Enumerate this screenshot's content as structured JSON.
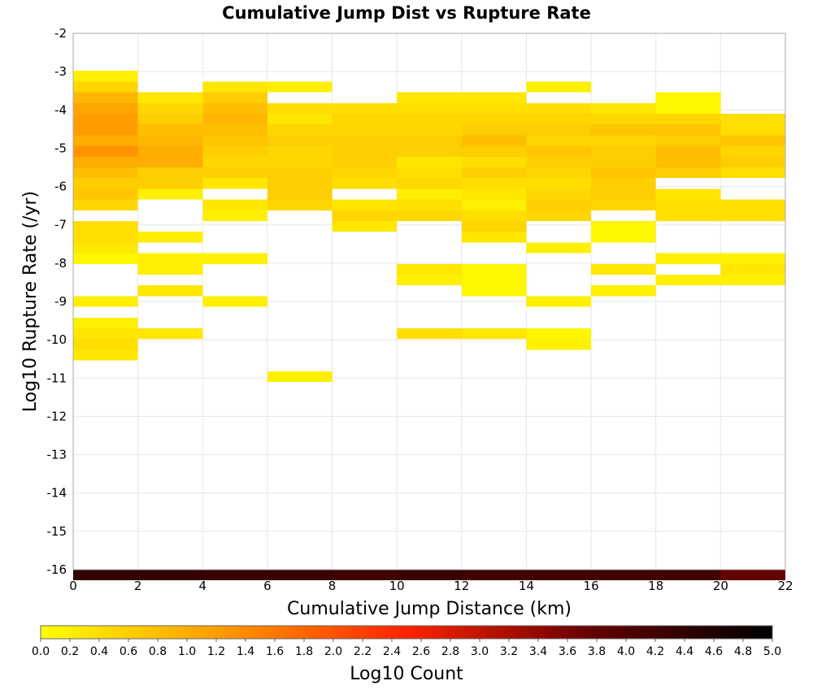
{
  "chart_data": {
    "type": "heatmap",
    "title": "Cumulative Jump Dist vs Rupture Rate",
    "xlabel": "Cumulative Jump Distance (km)",
    "ylabel": "Log10 Rupture Rate (/yr)",
    "xlim": [
      0,
      22
    ],
    "ylim": [
      -16,
      -2
    ],
    "x_ticks": [
      "0",
      "2",
      "4",
      "6",
      "8",
      "10",
      "12",
      "14",
      "16",
      "18",
      "20",
      "22"
    ],
    "y_ticks": [
      "-2",
      "-3",
      "-4",
      "-5",
      "-6",
      "-7",
      "-8",
      "-9",
      "-10",
      "-11",
      "-12",
      "-13",
      "-14",
      "-15",
      "-16"
    ],
    "x_bin_width": 2,
    "y_bin_height": 0.28,
    "grid": true,
    "colorbar": {
      "label": "Log10 Count",
      "range": [
        0,
        5
      ],
      "ticks": [
        "0.0",
        "0.2",
        "0.4",
        "0.6",
        "0.8",
        "1.0",
        "1.2",
        "1.4",
        "1.6",
        "1.8",
        "2.0",
        "2.2",
        "2.4",
        "2.6",
        "2.8",
        "3.0",
        "3.2",
        "3.4",
        "3.6",
        "3.8",
        "4.0",
        "4.2",
        "4.4",
        "4.6",
        "4.8",
        "5.0"
      ],
      "colors": [
        "#ffff00",
        "#ff9900",
        "#ff2200",
        "#660000",
        "#000000"
      ]
    },
    "cells": [
      [
        0,
        -2.98,
        0.2
      ],
      [
        0,
        -3.26,
        0.5
      ],
      [
        0,
        -3.54,
        0.9
      ],
      [
        0,
        -3.82,
        1.1
      ],
      [
        0,
        -4.1,
        1.2
      ],
      [
        0,
        -4.38,
        1.2
      ],
      [
        0,
        -4.66,
        1.0
      ],
      [
        0,
        -4.94,
        1.3
      ],
      [
        0,
        -5.22,
        1.0
      ],
      [
        0,
        -5.5,
        0.8
      ],
      [
        0,
        -5.78,
        0.6
      ],
      [
        0,
        -6.06,
        0.7
      ],
      [
        0,
        -6.34,
        0.5
      ],
      [
        0,
        -6.9,
        0.4
      ],
      [
        0,
        -7.18,
        0.4
      ],
      [
        0,
        -7.46,
        0.3
      ],
      [
        0,
        -7.74,
        0.1
      ],
      [
        0,
        -8.86,
        0.2
      ],
      [
        0,
        -9.42,
        0.2
      ],
      [
        0,
        -9.7,
        0.3
      ],
      [
        0,
        -9.98,
        0.4
      ],
      [
        0,
        -10.26,
        0.3
      ],
      [
        2,
        -3.54,
        0.3
      ],
      [
        2,
        -3.82,
        0.5
      ],
      [
        2,
        -4.1,
        0.6
      ],
      [
        2,
        -4.38,
        0.8
      ],
      [
        2,
        -4.66,
        0.9
      ],
      [
        2,
        -4.94,
        1.0
      ],
      [
        2,
        -5.22,
        1.0
      ],
      [
        2,
        -5.5,
        0.6
      ],
      [
        2,
        -5.78,
        0.6
      ],
      [
        2,
        -6.06,
        0.2
      ],
      [
        2,
        -7.18,
        0.2
      ],
      [
        2,
        -7.74,
        0.2
      ],
      [
        2,
        -8.02,
        0.2
      ],
      [
        2,
        -8.58,
        0.3
      ],
      [
        2,
        -9.7,
        0.3
      ],
      [
        4,
        -3.26,
        0.3
      ],
      [
        4,
        -3.54,
        0.6
      ],
      [
        4,
        -3.82,
        0.8
      ],
      [
        4,
        -4.1,
        0.9
      ],
      [
        4,
        -4.38,
        0.8
      ],
      [
        4,
        -4.66,
        0.7
      ],
      [
        4,
        -4.94,
        0.6
      ],
      [
        4,
        -5.22,
        0.5
      ],
      [
        4,
        -5.5,
        0.6
      ],
      [
        4,
        -5.78,
        0.3
      ],
      [
        4,
        -6.34,
        0.3
      ],
      [
        4,
        -6.62,
        0.2
      ],
      [
        4,
        -7.74,
        0.2
      ],
      [
        4,
        -8.86,
        0.2
      ],
      [
        6,
        -3.26,
        0.2
      ],
      [
        6,
        -3.82,
        0.4
      ],
      [
        6,
        -4.1,
        0.3
      ],
      [
        6,
        -4.38,
        0.5
      ],
      [
        6,
        -4.66,
        0.6
      ],
      [
        6,
        -4.94,
        0.5
      ],
      [
        6,
        -5.22,
        0.5
      ],
      [
        6,
        -5.5,
        0.6
      ],
      [
        6,
        -5.78,
        0.6
      ],
      [
        6,
        -6.06,
        0.6
      ],
      [
        6,
        -6.34,
        0.5
      ],
      [
        6,
        -10.82,
        0.2
      ],
      [
        8,
        -3.82,
        0.4
      ],
      [
        8,
        -4.1,
        0.5
      ],
      [
        8,
        -4.38,
        0.5
      ],
      [
        8,
        -4.66,
        0.6
      ],
      [
        8,
        -4.94,
        0.6
      ],
      [
        8,
        -5.22,
        0.6
      ],
      [
        8,
        -5.5,
        0.5
      ],
      [
        8,
        -5.78,
        0.4
      ],
      [
        8,
        -6.34,
        0.3
      ],
      [
        8,
        -6.62,
        0.5
      ],
      [
        8,
        -6.9,
        0.3
      ],
      [
        10,
        -3.54,
        0.3
      ],
      [
        10,
        -3.82,
        0.4
      ],
      [
        10,
        -4.1,
        0.5
      ],
      [
        10,
        -4.38,
        0.5
      ],
      [
        10,
        -4.66,
        0.6
      ],
      [
        10,
        -4.94,
        0.6
      ],
      [
        10,
        -5.22,
        0.3
      ],
      [
        10,
        -5.5,
        0.4
      ],
      [
        10,
        -5.78,
        0.5
      ],
      [
        10,
        -6.06,
        0.2
      ],
      [
        10,
        -6.34,
        0.4
      ],
      [
        10,
        -6.62,
        0.5
      ],
      [
        10,
        -8.02,
        0.3
      ],
      [
        10,
        -8.3,
        0.2
      ],
      [
        10,
        -9.7,
        0.4
      ],
      [
        12,
        -3.54,
        0.3
      ],
      [
        12,
        -3.82,
        0.4
      ],
      [
        12,
        -4.1,
        0.5
      ],
      [
        12,
        -4.38,
        0.6
      ],
      [
        12,
        -4.66,
        0.8
      ],
      [
        12,
        -4.94,
        0.6
      ],
      [
        12,
        -5.22,
        0.4
      ],
      [
        12,
        -5.5,
        0.6
      ],
      [
        12,
        -5.78,
        0.4
      ],
      [
        12,
        -6.06,
        0.3
      ],
      [
        12,
        -6.34,
        0.2
      ],
      [
        12,
        -6.62,
        0.4
      ],
      [
        12,
        -6.9,
        0.5
      ],
      [
        12,
        -7.18,
        0.3
      ],
      [
        12,
        -8.02,
        0.1
      ],
      [
        12,
        -8.3,
        0.1
      ],
      [
        12,
        -8.58,
        0.1
      ],
      [
        12,
        -9.7,
        0.3
      ],
      [
        14,
        -3.26,
        0.2
      ],
      [
        14,
        -3.82,
        0.4
      ],
      [
        14,
        -4.1,
        0.5
      ],
      [
        14,
        -4.38,
        0.6
      ],
      [
        14,
        -4.66,
        0.5
      ],
      [
        14,
        -4.94,
        0.7
      ],
      [
        14,
        -5.22,
        0.6
      ],
      [
        14,
        -5.5,
        0.5
      ],
      [
        14,
        -5.78,
        0.4
      ],
      [
        14,
        -6.06,
        0.5
      ],
      [
        14,
        -6.34,
        0.6
      ],
      [
        14,
        -6.62,
        0.5
      ],
      [
        14,
        -7.46,
        0.2
      ],
      [
        14,
        -8.86,
        0.2
      ],
      [
        14,
        -9.7,
        0.1
      ],
      [
        14,
        -9.98,
        0.2
      ],
      [
        16,
        -3.82,
        0.3
      ],
      [
        16,
        -4.1,
        0.5
      ],
      [
        16,
        -4.38,
        0.7
      ],
      [
        16,
        -4.66,
        0.5
      ],
      [
        16,
        -4.94,
        0.6
      ],
      [
        16,
        -5.22,
        0.6
      ],
      [
        16,
        -5.5,
        0.7
      ],
      [
        16,
        -5.78,
        0.6
      ],
      [
        16,
        -6.06,
        0.6
      ],
      [
        16,
        -6.34,
        0.5
      ],
      [
        16,
        -6.9,
        0.1
      ],
      [
        16,
        -7.18,
        0.1
      ],
      [
        16,
        -8.02,
        0.3
      ],
      [
        16,
        -8.58,
        0.2
      ],
      [
        18,
        -3.54,
        0.1
      ],
      [
        18,
        -3.82,
        0.1
      ],
      [
        18,
        -4.1,
        0.5
      ],
      [
        18,
        -4.38,
        0.7
      ],
      [
        18,
        -4.66,
        0.6
      ],
      [
        18,
        -4.94,
        0.8
      ],
      [
        18,
        -5.22,
        0.8
      ],
      [
        18,
        -5.5,
        0.6
      ],
      [
        18,
        -6.06,
        0.3
      ],
      [
        18,
        -6.34,
        0.4
      ],
      [
        18,
        -6.62,
        0.4
      ],
      [
        18,
        -7.74,
        0.2
      ],
      [
        18,
        -8.3,
        0.2
      ],
      [
        20,
        -4.1,
        0.4
      ],
      [
        20,
        -4.38,
        0.4
      ],
      [
        20,
        -4.66,
        0.7
      ],
      [
        20,
        -4.94,
        0.5
      ],
      [
        20,
        -5.22,
        0.6
      ],
      [
        20,
        -5.5,
        0.4
      ],
      [
        20,
        -6.34,
        0.4
      ],
      [
        20,
        -6.62,
        0.4
      ],
      [
        20,
        -7.74,
        0.2
      ],
      [
        20,
        -8.02,
        0.3
      ],
      [
        20,
        -8.3,
        0.2
      ],
      [
        0,
        -16,
        4.4
      ],
      [
        2,
        -16,
        4.4
      ],
      [
        4,
        -16,
        4.3
      ],
      [
        6,
        -16,
        4.3
      ],
      [
        8,
        -16,
        4.2
      ],
      [
        10,
        -16,
        4.3
      ],
      [
        12,
        -16,
        4.2
      ],
      [
        14,
        -16,
        4.2
      ],
      [
        16,
        -16,
        4.2
      ],
      [
        18,
        -16,
        4.2
      ],
      [
        20,
        -16,
        3.8
      ]
    ]
  }
}
